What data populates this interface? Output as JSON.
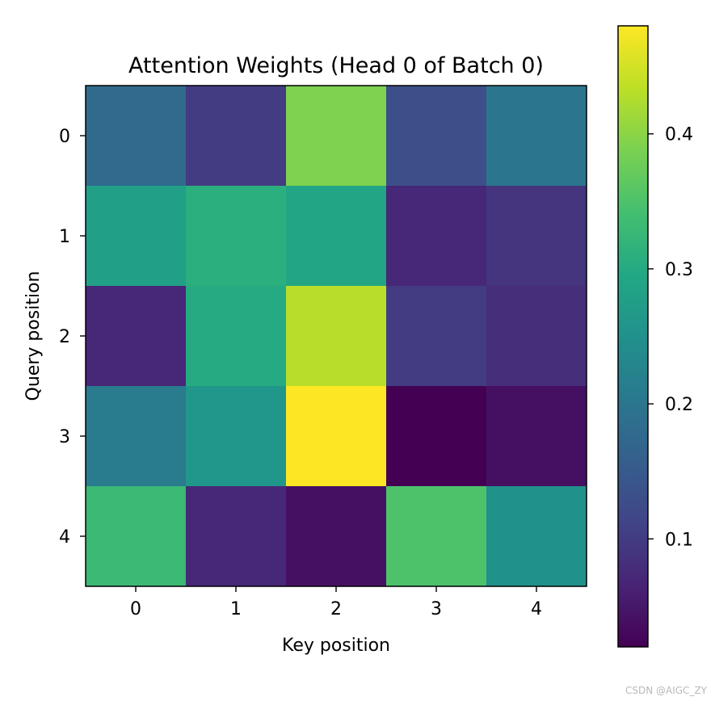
{
  "chart_data": {
    "type": "heatmap",
    "title": "Attention Weights (Head 0 of Batch 0)",
    "xlabel": "Key position",
    "ylabel": "Query position",
    "x_categories": [
      "0",
      "1",
      "2",
      "3",
      "4"
    ],
    "y_categories": [
      "0",
      "1",
      "2",
      "3",
      "4"
    ],
    "values": [
      [
        0.18,
        0.1,
        0.39,
        0.13,
        0.2
      ],
      [
        0.28,
        0.31,
        0.29,
        0.07,
        0.09
      ],
      [
        0.07,
        0.3,
        0.43,
        0.1,
        0.08
      ],
      [
        0.21,
        0.26,
        0.48,
        0.02,
        0.04
      ],
      [
        0.33,
        0.07,
        0.04,
        0.35,
        0.25
      ]
    ],
    "colormap": "viridis",
    "colorbar": {
      "range": [
        0.02,
        0.48
      ],
      "ticks": [
        0.1,
        0.2,
        0.3,
        0.4
      ],
      "tick_labels": [
        "0.1",
        "0.2",
        "0.3",
        "0.4"
      ]
    },
    "grid": false
  },
  "watermark": "CSDN @AIGC_ZY"
}
